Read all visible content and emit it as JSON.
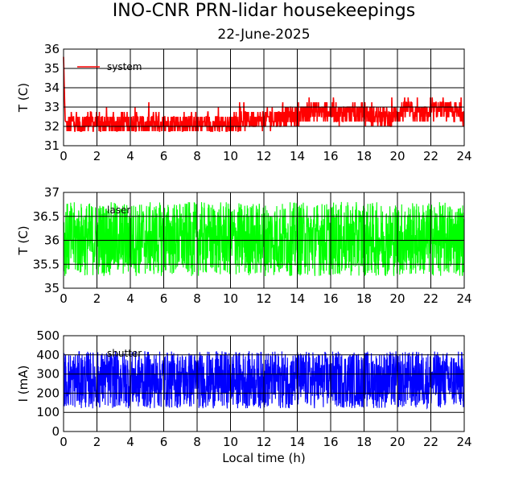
{
  "title": "INO-CNR PRN-lidar housekeepings",
  "subtitle": "22-June-2025",
  "chart_data": [
    {
      "type": "line",
      "ylabel": "T (C)",
      "xlabel": "",
      "xlim": [
        0,
        24
      ],
      "ylim": [
        31,
        36
      ],
      "xticks": [
        "0",
        "2",
        "4",
        "6",
        "8",
        "10",
        "12",
        "14",
        "16",
        "18",
        "20",
        "22",
        "24"
      ],
      "yticks": [
        "31",
        "32",
        "33",
        "34",
        "35",
        "36"
      ],
      "grid": true,
      "legend": "top-left",
      "series": [
        {
          "name": "system",
          "color": "#ff0000",
          "x": [
            0,
            0.05,
            0.1,
            0.3,
            0.5,
            1,
            1.5,
            2,
            2.5,
            3,
            3.5,
            4,
            4.5,
            5,
            5.5,
            6,
            6.5,
            7,
            7.5,
            8,
            8.5,
            9,
            9.5,
            10,
            10.5,
            11,
            11.5,
            12,
            12.5,
            13,
            13.5,
            14,
            14.5,
            15,
            15.5,
            16,
            16.5,
            17,
            17.5,
            18,
            18.5,
            19,
            19.5,
            20,
            20.5,
            21,
            21.5,
            22,
            22.5,
            23,
            23.5,
            24
          ],
          "y": [
            35.6,
            33.8,
            32.3,
            32.0,
            32.3,
            32.0,
            32.3,
            32.1,
            32.2,
            32.0,
            32.3,
            32.1,
            32.2,
            32.0,
            32.3,
            32.1,
            32.2,
            32.1,
            32.3,
            32.0,
            32.2,
            32.1,
            32.2,
            32.1,
            32.3,
            32.3,
            32.4,
            32.3,
            32.5,
            32.4,
            32.6,
            32.5,
            32.7,
            32.8,
            32.7,
            32.8,
            32.6,
            32.7,
            32.6,
            32.7,
            32.5,
            32.6,
            32.4,
            32.6,
            32.9,
            32.7,
            32.6,
            32.7,
            32.9,
            32.8,
            32.7,
            32.6
          ],
          "range_min": 31.6,
          "range_max": 33.6
        }
      ]
    },
    {
      "type": "line",
      "ylabel": "T (C)",
      "xlabel": "",
      "xlim": [
        0,
        24
      ],
      "ylim": [
        35,
        37
      ],
      "xticks": [
        "0",
        "2",
        "4",
        "6",
        "8",
        "10",
        "12",
        "14",
        "16",
        "18",
        "20",
        "22",
        "24"
      ],
      "yticks": [
        "35",
        "35.5",
        "36",
        "36.5",
        "37"
      ],
      "grid": true,
      "legend": "top-left",
      "series": [
        {
          "name": "laser",
          "color": "#00ff00",
          "mean": 36.0,
          "amplitude_min": 35.25,
          "amplitude_max": 36.8
        }
      ]
    },
    {
      "type": "line",
      "ylabel": "I (mA)",
      "xlabel": "Local time (h)",
      "xlim": [
        0,
        24
      ],
      "ylim": [
        0,
        500
      ],
      "xticks": [
        "0",
        "2",
        "4",
        "6",
        "8",
        "10",
        "12",
        "14",
        "16",
        "18",
        "20",
        "22",
        "24"
      ],
      "yticks": [
        "0",
        "100",
        "200",
        "300",
        "400",
        "500"
      ],
      "grid": true,
      "legend": "top-left",
      "series": [
        {
          "name": "shutter",
          "color": "#0000ff",
          "mean": 270,
          "amplitude_min": 120,
          "amplitude_max": 420
        }
      ]
    }
  ]
}
